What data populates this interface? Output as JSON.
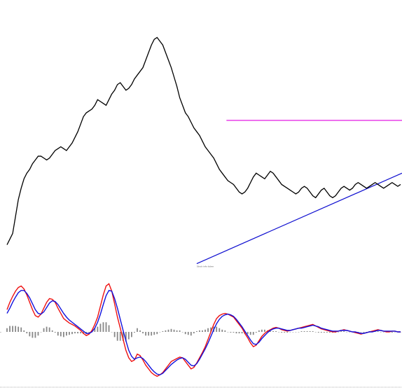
{
  "chart_data": [
    {
      "type": "line",
      "panel": "price",
      "title": "",
      "xlabel": "",
      "ylabel": "",
      "annotation": "Stock info ticker",
      "x": [
        0,
        2,
        4,
        6,
        8,
        10,
        12,
        14,
        16,
        18,
        20,
        22,
        24,
        26,
        28,
        30,
        32,
        34,
        36,
        38,
        40,
        42,
        44,
        46,
        48,
        50,
        52,
        54,
        56,
        58,
        60,
        62,
        64,
        66,
        68,
        70,
        72,
        74,
        76,
        78,
        80,
        82,
        84,
        86,
        88,
        90,
        92,
        94,
        96,
        98,
        100,
        102,
        104,
        106,
        108,
        110,
        112,
        114,
        116,
        118,
        120,
        122,
        124,
        126,
        128,
        130,
        132,
        134,
        136,
        138,
        140,
        142,
        144,
        146,
        148,
        150,
        152,
        154,
        156,
        158,
        160,
        162,
        164,
        166,
        168,
        170,
        172,
        174,
        176,
        178,
        180,
        182,
        184,
        186,
        188,
        190,
        192,
        194,
        196,
        198,
        200,
        202,
        204,
        206,
        208,
        210,
        212,
        214,
        216,
        218,
        220,
        222,
        224,
        226,
        228,
        230,
        232,
        234,
        236,
        238,
        240,
        242,
        244,
        246,
        248,
        250,
        252,
        254,
        256,
        258,
        260,
        262,
        264,
        266,
        268,
        270,
        272,
        274,
        276,
        278
      ],
      "series": [
        {
          "values": [
            10,
            13,
            16,
            25,
            34,
            40,
            45,
            48,
            50,
            53,
            55,
            57,
            57,
            56,
            55,
            56,
            58,
            60,
            61,
            62,
            61,
            60,
            62,
            64,
            67,
            70,
            74,
            78,
            80,
            81,
            82,
            84,
            87,
            86,
            85,
            84,
            87,
            90,
            92,
            95,
            96,
            94,
            92,
            93,
            95,
            98,
            100,
            102,
            104,
            108,
            112,
            116,
            119,
            120,
            118,
            116,
            112,
            108,
            104,
            99,
            94,
            88,
            84,
            80,
            78,
            75,
            72,
            70,
            68,
            65,
            62,
            60,
            58,
            56,
            53,
            50,
            48,
            46,
            44,
            43,
            42,
            40,
            38,
            37,
            38,
            40,
            43,
            46,
            48,
            47,
            46,
            45,
            47,
            49,
            48,
            46,
            44,
            42,
            41,
            40,
            39,
            38,
            37,
            38,
            40,
            41,
            40,
            38,
            36,
            35,
            37,
            39,
            40,
            38,
            36,
            35,
            36,
            38,
            40,
            41,
            40,
            39,
            40,
            42,
            43,
            42,
            41,
            40,
            41,
            42,
            43,
            42,
            41,
            40,
            41,
            42,
            43,
            42,
            41,
            42
          ]
        }
      ],
      "hlines": [
        {
          "value": 76,
          "color": "#e000e0"
        }
      ],
      "trendline": {
        "from": [
          134,
          0
        ],
        "to": [
          278,
          48
        ],
        "color": "#1010d0"
      },
      "ylim": [
        -5,
        125
      ],
      "grid": false
    },
    {
      "type": "line",
      "panel": "indicator",
      "title": "",
      "xlabel": "",
      "ylabel": "",
      "x": [
        0,
        2,
        4,
        6,
        8,
        10,
        12,
        14,
        16,
        18,
        20,
        22,
        24,
        26,
        28,
        30,
        32,
        34,
        36,
        38,
        40,
        42,
        44,
        46,
        48,
        50,
        52,
        54,
        56,
        58,
        60,
        62,
        64,
        66,
        68,
        70,
        72,
        74,
        76,
        78,
        80,
        82,
        84,
        86,
        88,
        90,
        92,
        94,
        96,
        98,
        100,
        102,
        104,
        106,
        108,
        110,
        112,
        114,
        116,
        118,
        120,
        122,
        124,
        126,
        128,
        130,
        132,
        134,
        136,
        138,
        140,
        142,
        144,
        146,
        148,
        150,
        152,
        154,
        156,
        158,
        160,
        162,
        164,
        166,
        168,
        170,
        172,
        174,
        176,
        178,
        180,
        182,
        184,
        186,
        188,
        190,
        192,
        194,
        196,
        198,
        200,
        202,
        204,
        206,
        208,
        210,
        212,
        214,
        216,
        218,
        220,
        222,
        224,
        226,
        228,
        230,
        232,
        234,
        236,
        238,
        240,
        242,
        244,
        246,
        248,
        250,
        252,
        254,
        256,
        258,
        260,
        262,
        264,
        266,
        268,
        270,
        272,
        274,
        276,
        278
      ],
      "series": [
        {
          "color": "#ee1111",
          "values": [
            30,
            40,
            48,
            55,
            60,
            62,
            58,
            50,
            40,
            30,
            22,
            20,
            24,
            32,
            40,
            45,
            44,
            40,
            32,
            25,
            18,
            15,
            12,
            10,
            8,
            5,
            2,
            -2,
            -5,
            -3,
            2,
            10,
            20,
            35,
            50,
            62,
            65,
            55,
            38,
            20,
            5,
            -10,
            -25,
            -35,
            -40,
            -38,
            -30,
            -32,
            -38,
            -45,
            -50,
            -55,
            -58,
            -60,
            -58,
            -55,
            -50,
            -45,
            -40,
            -38,
            -36,
            -34,
            -35,
            -40,
            -45,
            -50,
            -48,
            -42,
            -35,
            -28,
            -20,
            -10,
            0,
            10,
            18,
            22,
            24,
            25,
            24,
            22,
            20,
            15,
            10,
            5,
            -2,
            -8,
            -15,
            -20,
            -18,
            -12,
            -6,
            -2,
            1,
            3,
            5,
            6,
            5,
            3,
            2,
            1,
            2,
            3,
            4,
            5,
            6,
            7,
            8,
            9,
            10,
            8,
            6,
            4,
            3,
            2,
            1,
            0,
            0,
            1,
            2,
            3,
            2,
            1,
            0,
            -1,
            -2,
            -3,
            -2,
            -1,
            0,
            1,
            2,
            3,
            2,
            1,
            0,
            0,
            1,
            1,
            0,
            0
          ]
        },
        {
          "color": "#1111dd",
          "values": [
            25,
            32,
            40,
            47,
            53,
            56,
            56,
            52,
            46,
            38,
            30,
            25,
            24,
            27,
            33,
            39,
            42,
            41,
            37,
            31,
            25,
            20,
            16,
            13,
            10,
            7,
            4,
            1,
            -2,
            -2,
            0,
            5,
            13,
            24,
            37,
            49,
            56,
            55,
            45,
            32,
            17,
            2,
            -12,
            -25,
            -33,
            -37,
            -35,
            -34,
            -36,
            -40,
            -45,
            -50,
            -54,
            -57,
            -58,
            -56,
            -52,
            -48,
            -44,
            -41,
            -38,
            -36,
            -35,
            -37,
            -41,
            -45,
            -46,
            -43,
            -37,
            -30,
            -23,
            -15,
            -6,
            3,
            11,
            17,
            21,
            23,
            24,
            23,
            21,
            17,
            12,
            7,
            1,
            -5,
            -11,
            -16,
            -17,
            -14,
            -9,
            -5,
            -1,
            2,
            4,
            5,
            5,
            4,
            3,
            2,
            2,
            3,
            4,
            5,
            5,
            6,
            7,
            8,
            9,
            8,
            7,
            5,
            4,
            3,
            2,
            1,
            1,
            1,
            2,
            2,
            2,
            1,
            0,
            0,
            -1,
            -2,
            -2,
            -1,
            0,
            0,
            1,
            2,
            2,
            1,
            1,
            1,
            1,
            1,
            0,
            0
          ]
        }
      ],
      "histogram": {
        "color": "#888888",
        "values": [
          5,
          8,
          8,
          8,
          7,
          6,
          2,
          -2,
          -6,
          -8,
          -8,
          -5,
          0,
          5,
          7,
          6,
          2,
          -1,
          -5,
          -6,
          -7,
          -5,
          -4,
          -3,
          -2,
          -2,
          -2,
          -3,
          -3,
          -1,
          2,
          5,
          7,
          11,
          13,
          13,
          9,
          0,
          -7,
          -12,
          -12,
          -12,
          -13,
          -10,
          -7,
          -1,
          5,
          2,
          -2,
          -5,
          -5,
          -5,
          -4,
          -3,
          0,
          1,
          2,
          3,
          4,
          3,
          2,
          2,
          0,
          -3,
          -4,
          -5,
          -2,
          1,
          2,
          2,
          3,
          5,
          6,
          7,
          7,
          5,
          3,
          2,
          0,
          -1,
          -1,
          -2,
          -2,
          -2,
          -3,
          -3,
          -4,
          -4,
          -1,
          2,
          3,
          3,
          2,
          1,
          1,
          1,
          0,
          -1,
          -1,
          -1,
          0,
          0,
          0,
          0,
          1,
          1,
          1,
          1,
          1,
          0,
          -1,
          -1,
          -1,
          -1,
          -1,
          -1,
          -1,
          0,
          1,
          1,
          0,
          0,
          0,
          0,
          0,
          0,
          -1,
          0,
          1,
          1,
          1,
          1,
          0,
          0,
          0,
          0,
          -1,
          0,
          0,
          0,
          0,
          0
        ]
      },
      "ylim": [
        -70,
        70
      ],
      "grid": false
    }
  ],
  "colors": {
    "price_line": "#000000",
    "resistance": "#e000e0",
    "trend": "#1010d0",
    "fast": "#ee1111",
    "slow": "#1111dd",
    "histogram": "#888888",
    "separator": "#999999"
  }
}
